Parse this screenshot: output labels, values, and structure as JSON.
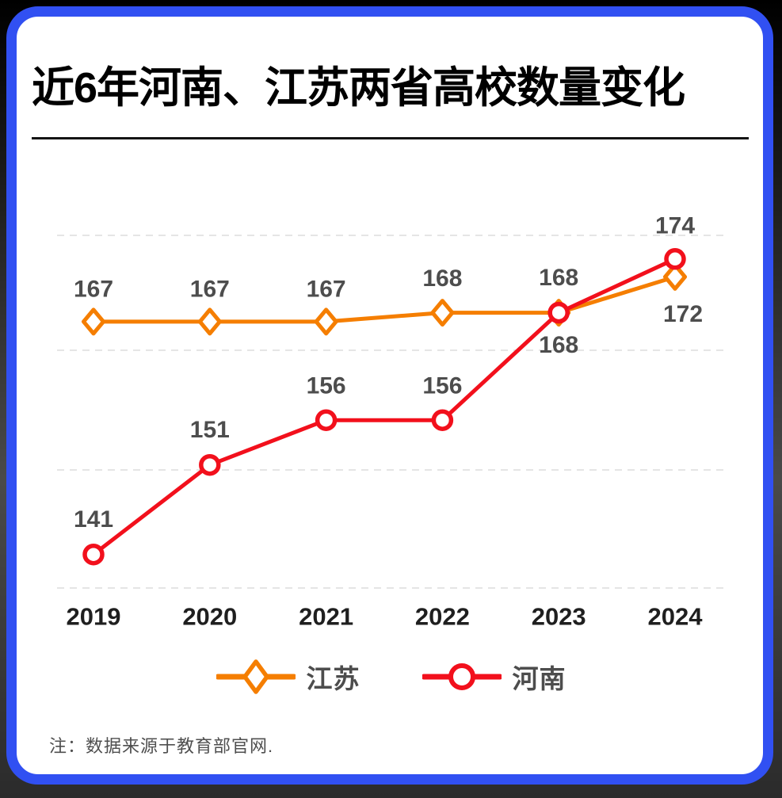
{
  "title": "近6年河南、江苏两省高校数量变化",
  "footnote": "注：数据来源于教育部官网.",
  "colors": {
    "card_border": "#3150f2",
    "jiangsu_orange": "#f57e00",
    "henan_red": "#f2101c",
    "grid_line": "#e5e5e5",
    "data_label": "#4d4d4d",
    "axis_label": "#1f1f1f"
  },
  "chart_data": {
    "type": "line",
    "title": "近6年河南、江苏两省高校数量变化",
    "categories": [
      "2019",
      "2020",
      "2021",
      "2022",
      "2023",
      "2024"
    ],
    "series": [
      {
        "name": "江苏",
        "marker": "diamond",
        "color": "#f57e00",
        "values": [
          167,
          167,
          167,
          168,
          168,
          172
        ]
      },
      {
        "name": "河南",
        "marker": "circle",
        "color": "#f2101c",
        "values": [
          141,
          151,
          156,
          156,
          168,
          174
        ]
      }
    ],
    "ylim": [
      135,
      180
    ],
    "xlabel": "",
    "ylabel": "",
    "grid": "horizontal-dashed",
    "legend_position": "bottom",
    "note": "注：数据来源于教育部官网."
  }
}
